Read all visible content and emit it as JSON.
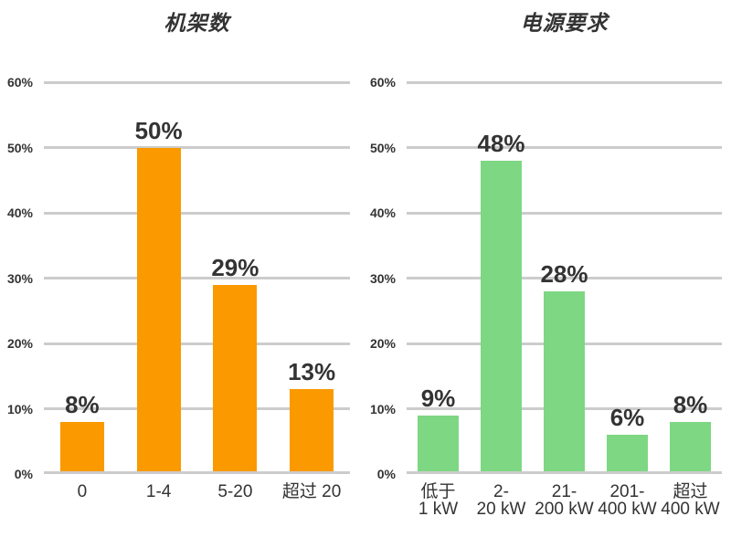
{
  "page": {
    "background": "#FFFFFF",
    "text_color": "#333333",
    "gridline_color": "#CCCCCC"
  },
  "chart_data": [
    {
      "type": "bar",
      "title": "机架数",
      "categories": [
        "0",
        "1-4",
        "5-20",
        "超过 20"
      ],
      "values": [
        8,
        50,
        29,
        13
      ],
      "value_labels": [
        "8%",
        "50%",
        "29%",
        "13%"
      ],
      "bar_color": "#FA9900",
      "xlabel": "",
      "ylabel": "",
      "ylim": [
        0,
        60
      ],
      "ytick_labels": [
        "0%",
        "10%",
        "20%",
        "30%",
        "40%",
        "50%",
        "60%"
      ],
      "grid": true,
      "legend": "none"
    },
    {
      "type": "bar",
      "title": "电源要求",
      "categories": [
        "低于\n1 kW",
        "2-\n20 kW",
        "21-\n200 kW",
        "201-\n400 kW",
        "超过\n400 kW"
      ],
      "values": [
        9,
        48,
        28,
        6,
        8
      ],
      "value_labels": [
        "9%",
        "48%",
        "28%",
        "6%",
        "8%"
      ],
      "bar_color": "#7ED783",
      "xlabel": "",
      "ylabel": "",
      "ylim": [
        0,
        60
      ],
      "ytick_labels": [
        "0%",
        "10%",
        "20%",
        "30%",
        "40%",
        "50%",
        "60%"
      ],
      "grid": true,
      "legend": "none"
    }
  ]
}
